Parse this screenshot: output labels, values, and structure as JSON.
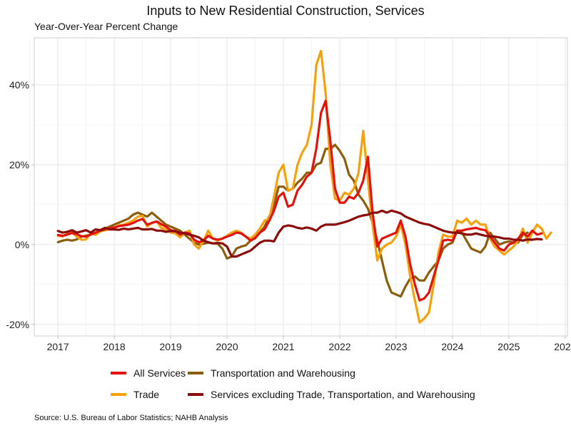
{
  "chart_data": {
    "type": "line",
    "title": "Inputs to New Residential Construction, Services",
    "subtitle": "Year-Over-Year Percent Change",
    "xlabel": "",
    "ylabel": "Year-Over-Year Percent Change",
    "x_start": "2017-01",
    "x_frequency": "monthly",
    "xlim": [
      2016.58,
      2026.04
    ],
    "ylim": [
      -22.9,
      51.8
    ],
    "x_ticks": [
      2017,
      2018,
      2019,
      2020,
      2021,
      2022,
      2023,
      2024,
      2025,
      2026
    ],
    "x_tick_labels": [
      "2017",
      "2018",
      "2019",
      "2020",
      "2021",
      "2022",
      "2023",
      "2024",
      "2025",
      "2026"
    ],
    "y_ticks": [
      -20,
      0,
      20,
      40
    ],
    "y_tick_labels": [
      "-20%",
      "0%",
      "20%",
      "40%"
    ],
    "grid": true,
    "legend_position": "bottom",
    "source": "Source: U.S. Bureau of Labor Statistics; NAHB Analysis",
    "series": [
      {
        "name": "All Services",
        "color": "#e3120b",
        "values": [
          2.4,
          2.2,
          2.5,
          2.9,
          2.6,
          2.1,
          2.0,
          2.5,
          3.0,
          3.5,
          3.8,
          4.1,
          4.3,
          4.6,
          4.8,
          5.0,
          5.4,
          6.0,
          6.4,
          5.0,
          5.4,
          5.8,
          5.1,
          4.5,
          3.6,
          3.4,
          2.5,
          3.0,
          2.8,
          1.2,
          0.6,
          1.0,
          2.2,
          1.5,
          1.2,
          1.5,
          2.0,
          2.4,
          3.0,
          2.8,
          2.0,
          1.0,
          1.6,
          3.0,
          3.8,
          6.0,
          8.5,
          12.0,
          13.0,
          9.5,
          10.0,
          13.5,
          15.0,
          17.0,
          18.0,
          24.0,
          33.0,
          36.0,
          26.0,
          14.0,
          10.5,
          10.5,
          12.0,
          11.5,
          13.0,
          16.0,
          22.0,
          8.0,
          -0.5,
          1.5,
          2.0,
          2.5,
          3.0,
          6.0,
          2.0,
          -5.0,
          -10.0,
          -14.0,
          -13.5,
          -12.0,
          -8.0,
          -4.0,
          1.0,
          1.2,
          1.0,
          3.5,
          3.5,
          3.8,
          4.0,
          4.2,
          3.8,
          3.6,
          2.0,
          0.5,
          -1.0,
          -1.5,
          0.0,
          0.5,
          1.5,
          3.0,
          2.0,
          3.5,
          2.5,
          2.8
        ]
      },
      {
        "name": "Trade",
        "color": "#f6a10a",
        "values": [
          2.2,
          2.0,
          2.8,
          3.0,
          2.0,
          1.2,
          1.3,
          3.0,
          2.4,
          3.3,
          3.6,
          3.8,
          4.2,
          4.8,
          5.0,
          5.5,
          6.0,
          7.0,
          7.2,
          4.5,
          5.5,
          5.8,
          4.2,
          3.8,
          3.0,
          2.8,
          1.8,
          3.0,
          3.5,
          0.0,
          -1.0,
          1.0,
          3.5,
          1.5,
          1.0,
          1.5,
          2.2,
          3.0,
          3.5,
          3.0,
          2.0,
          1.5,
          2.5,
          4.0,
          6.0,
          6.5,
          12.0,
          18.0,
          20.0,
          13.5,
          14.0,
          20.0,
          23.0,
          25.0,
          30.0,
          45.0,
          48.5,
          38.0,
          20.0,
          11.5,
          11.0,
          13.0,
          12.5,
          14.0,
          18.0,
          28.5,
          16.0,
          5.0,
          -4.0,
          -1.0,
          0.0,
          0.5,
          2.0,
          5.0,
          0.0,
          -8.0,
          -14.0,
          -19.5,
          -18.5,
          -17.0,
          -10.0,
          -2.0,
          2.5,
          2.0,
          2.0,
          6.0,
          5.5,
          6.5,
          5.0,
          6.0,
          5.0,
          5.0,
          1.5,
          -0.5,
          -1.5,
          -2.5,
          -1.5,
          -0.5,
          1.0,
          4.0,
          0.5,
          3.0,
          5.0,
          4.0,
          1.5,
          3.0
        ]
      },
      {
        "name": "Transportation and Warehousing",
        "color": "#8c5e0c",
        "values": [
          0.6,
          1.0,
          1.2,
          1.0,
          1.3,
          2.0,
          2.2,
          2.5,
          3.0,
          3.5,
          4.0,
          4.5,
          5.0,
          5.5,
          6.0,
          6.5,
          7.5,
          8.0,
          7.5,
          7.0,
          8.0,
          7.0,
          6.0,
          5.0,
          4.5,
          4.0,
          3.5,
          2.5,
          1.5,
          0.5,
          0.0,
          0.2,
          0.5,
          0.3,
          0.2,
          -1.0,
          -3.5,
          -3.0,
          -1.0,
          -0.5,
          -0.2,
          1.0,
          2.0,
          3.0,
          4.5,
          7.0,
          10.0,
          14.5,
          14.5,
          13.5,
          14.0,
          15.5,
          16.5,
          18.0,
          18.0,
          20.0,
          20.5,
          24.0,
          24.0,
          25.0,
          23.5,
          21.5,
          17.5,
          16.0,
          12.5,
          11.0,
          9.0,
          5.5,
          1.0,
          -4.0,
          -9.0,
          -12.0,
          -12.5,
          -13.0,
          -10.5,
          -8.5,
          -8.0,
          -9.0,
          -9.0,
          -7.0,
          -5.5,
          -4.0,
          -1.0,
          0.0,
          0.5,
          3.5,
          3.0,
          1.0,
          -1.0,
          -1.5,
          -2.0,
          -0.5,
          3.0,
          1.5,
          0.0,
          0.5,
          0.8,
          0.5,
          0.5,
          2.5,
          3.0
        ]
      },
      {
        "name": "Services excluding Trade, Transportation, and Warehousing",
        "color": "#8b0a0a",
        "values": [
          3.4,
          3.0,
          3.2,
          3.6,
          3.0,
          3.3,
          3.6,
          3.0,
          3.8,
          3.6,
          4.2,
          3.8,
          3.8,
          3.7,
          4.0,
          3.8,
          4.0,
          4.2,
          3.8,
          3.8,
          3.9,
          3.5,
          3.5,
          3.2,
          3.4,
          3.3,
          3.0,
          2.8,
          2.5,
          2.2,
          1.8,
          1.0,
          0.6,
          0.3,
          0.4,
          0.3,
          -0.5,
          -3.0,
          -3.0,
          -2.5,
          -2.0,
          -1.5,
          -0.5,
          0.5,
          1.0,
          1.0,
          0.8,
          3.0,
          4.5,
          4.8,
          4.6,
          4.2,
          4.0,
          4.3,
          4.0,
          3.5,
          4.5,
          5.0,
          5.0,
          5.0,
          5.3,
          5.6,
          6.0,
          6.5,
          7.0,
          7.3,
          7.5,
          8.0,
          8.0,
          8.5,
          8.0,
          8.5,
          8.2,
          7.8,
          7.0,
          6.5,
          6.0,
          5.5,
          5.2,
          5.0,
          4.5,
          4.0,
          3.5,
          3.2,
          3.0,
          3.0,
          2.8,
          2.5,
          2.5,
          2.8,
          2.5,
          2.2,
          2.0,
          2.0,
          1.8,
          1.5,
          1.5,
          1.2,
          1.2,
          1.0,
          1.3,
          1.2,
          1.4,
          1.3
        ]
      }
    ]
  }
}
